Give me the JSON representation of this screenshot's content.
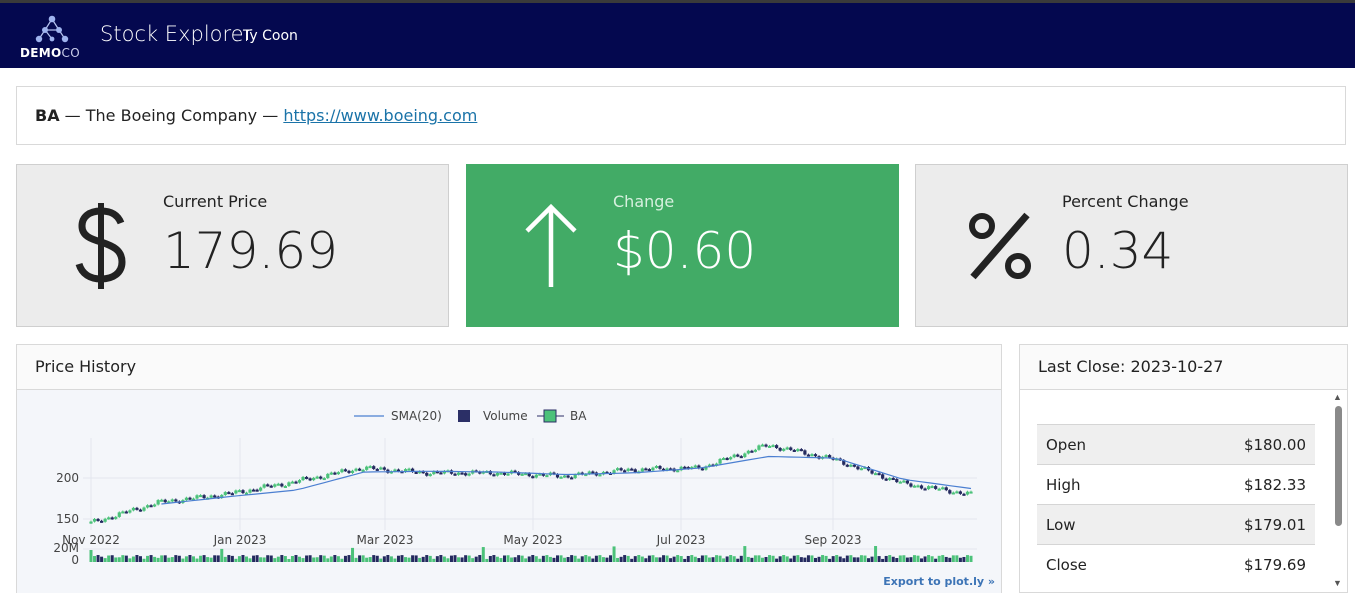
{
  "header": {
    "logo": {
      "brand_bold": "DEMO",
      "brand_light": "CO",
      "icon": "molecule-logo-icon"
    },
    "title": "Stock Explorer",
    "user": "Ty Coon"
  },
  "company": {
    "ticker": "BA",
    "separator": " — ",
    "name": "The Boeing Company",
    "url": "https://www.boeing.com"
  },
  "cards": [
    {
      "label": "Current Price",
      "value": "179.69",
      "icon": "dollar-icon",
      "color": "#ececec"
    },
    {
      "label": "Change",
      "value": "$0.60",
      "icon": "arrow-up-icon",
      "color": "#42ab66"
    },
    {
      "label": "Percent Change",
      "value": "0.34",
      "icon": "percent-icon",
      "color": "#ececec"
    }
  ],
  "price_history": {
    "title": "Price History",
    "export_label": "Export to plot.ly »"
  },
  "chart_data": {
    "type": "candlestick",
    "legend": [
      "SMA(20)",
      "Volume",
      "BA"
    ],
    "legend_position": "top-center",
    "x_ticks": [
      "Nov 2022",
      "Jan 2023",
      "Mar 2023",
      "May 2023",
      "Jul 2023",
      "Sep 2023"
    ],
    "y_ticks": [
      "150",
      "200"
    ],
    "volume_ticks": [
      "20M",
      "0"
    ],
    "ylim": [
      140,
      240
    ],
    "close_series": [
      {
        "x": "Nov 2022",
        "y": 145
      },
      {
        "x": "Nov 2022",
        "y": 170
      },
      {
        "x": "Dec 2022",
        "y": 180
      },
      {
        "x": "Jan 2023",
        "y": 195
      },
      {
        "x": "Feb 2023",
        "y": 212
      },
      {
        "x": "Mar 2023",
        "y": 206
      },
      {
        "x": "Apr 2023",
        "y": 206
      },
      {
        "x": "May 2023",
        "y": 202
      },
      {
        "x": "Jun 2023",
        "y": 210
      },
      {
        "x": "Jul 2023",
        "y": 212
      },
      {
        "x": "Aug 2023",
        "y": 240
      },
      {
        "x": "Sep 2023",
        "y": 222
      },
      {
        "x": "Oct 2023",
        "y": 193
      },
      {
        "x": "Oct 2023",
        "y": 180
      }
    ],
    "sma_series": [
      {
        "x": "Nov 2022",
        "y": 168
      },
      {
        "x": "Dec 2022",
        "y": 177
      },
      {
        "x": "Jan 2023",
        "y": 185
      },
      {
        "x": "Feb 2023",
        "y": 207
      },
      {
        "x": "Mar 2023",
        "y": 208
      },
      {
        "x": "Apr 2023",
        "y": 207
      },
      {
        "x": "May 2023",
        "y": 204
      },
      {
        "x": "Jun 2023",
        "y": 206
      },
      {
        "x": "Jul 2023",
        "y": 212
      },
      {
        "x": "Aug 2023",
        "y": 226
      },
      {
        "x": "Sep 2023",
        "y": 224
      },
      {
        "x": "Oct 2023",
        "y": 198
      },
      {
        "x": "Oct 2023",
        "y": 187
      }
    ],
    "colors": {
      "up": "#4cc27a",
      "down": "#242a5f",
      "sma": "#4b7fd1",
      "volume_legend": "#2b2f66"
    }
  },
  "last_close": {
    "title": "Last Close: 2023-10-27",
    "rows": [
      {
        "label": "Open",
        "value": "$180.00"
      },
      {
        "label": "High",
        "value": "$182.33"
      },
      {
        "label": "Low",
        "value": "$179.01"
      },
      {
        "label": "Close",
        "value": "$179.69"
      }
    ]
  }
}
